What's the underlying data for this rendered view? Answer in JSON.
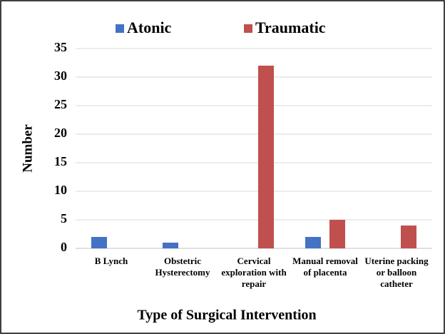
{
  "chart_data": {
    "type": "bar",
    "categories": [
      "B Lynch",
      "Obstetric Hysterectomy",
      "Cervical exploration with repair",
      "Manual removal of placenta",
      "Uterine packing or balloon catheter"
    ],
    "series": [
      {
        "name": "Atonic",
        "color": "#4472c4",
        "values": [
          2,
          1,
          0,
          2,
          0
        ]
      },
      {
        "name": "Traumatic",
        "color": "#c0504d",
        "values": [
          0,
          0,
          32,
          5,
          4
        ]
      }
    ],
    "ylim": [
      0,
      35
    ],
    "yticks": [
      0,
      5,
      10,
      15,
      20,
      25,
      30,
      35
    ],
    "grid": true,
    "y_label": "Number",
    "x_label": "Type of Surgical Intervention",
    "legend": "top"
  }
}
